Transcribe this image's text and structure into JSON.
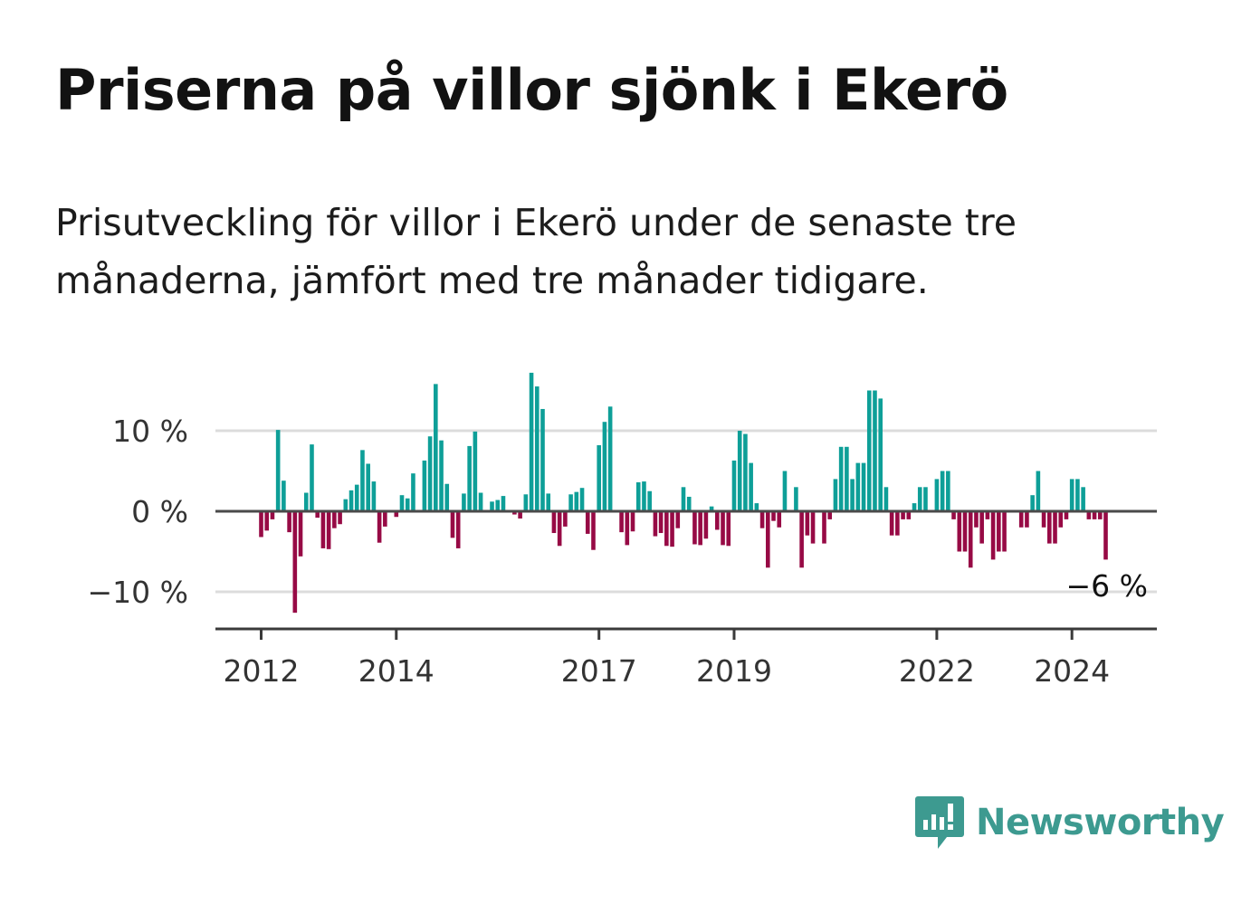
{
  "title": "Priserna på villor sjönk i Ekerö",
  "subtitle": "Prisutveckling för villor i Ekerö under de senaste tre månaderna, jämfört med tre månader tidigare.",
  "brand": {
    "name": "Newsworthy",
    "color": "#3d9a90",
    "icon": "newsworthy-logo-icon"
  },
  "colors": {
    "positive": "#0e9f98",
    "negative": "#970a45",
    "grid": "#dcdcdc",
    "axis": "#3a3a3a"
  },
  "chart_data": {
    "type": "bar",
    "title": "Priserna på villor sjönk i Ekerö",
    "ylabel": "",
    "xlabel": "",
    "ylim": [
      -15,
      18
    ],
    "yticks": [
      {
        "value": 10,
        "label": "10 %"
      },
      {
        "value": 0,
        "label": "0 %"
      },
      {
        "value": -10,
        "label": "−10 %"
      }
    ],
    "xticks": [
      {
        "index": 0,
        "label": "2012"
      },
      {
        "index": 24,
        "label": "2014"
      },
      {
        "index": 60,
        "label": "2017"
      },
      {
        "index": 84,
        "label": "2019"
      },
      {
        "index": 120,
        "label": "2022"
      },
      {
        "index": 144,
        "label": "2024"
      }
    ],
    "start": "2012-01",
    "frequency": "monthly",
    "values": [
      -3.2,
      -2.4,
      -1.0,
      10.1,
      3.8,
      -2.6,
      -12.6,
      -5.6,
      2.3,
      8.3,
      -0.8,
      -4.6,
      -4.7,
      -2.1,
      -1.6,
      1.5,
      2.6,
      3.3,
      7.6,
      5.9,
      3.7,
      -3.9,
      -1.9,
      0.0,
      -0.7,
      2.0,
      1.6,
      4.7,
      0.0,
      6.3,
      9.3,
      15.8,
      8.8,
      3.4,
      -3.3,
      -4.6,
      2.2,
      8.1,
      9.9,
      2.3,
      0.0,
      1.2,
      1.4,
      1.9,
      0.0,
      -0.4,
      -0.9,
      2.1,
      17.2,
      15.5,
      12.7,
      2.2,
      -2.7,
      -4.3,
      -1.9,
      2.1,
      2.4,
      2.9,
      -2.8,
      -4.8,
      8.2,
      11.1,
      13.0,
      0.0,
      -2.6,
      -4.2,
      -2.5,
      3.6,
      3.7,
      2.5,
      -3.1,
      -2.7,
      -4.3,
      -4.4,
      -2.1,
      3.0,
      1.8,
      -4.1,
      -4.2,
      -3.4,
      0.6,
      -2.3,
      -4.2,
      -4.3,
      6.3,
      10.0,
      9.6,
      6.0,
      1.0,
      -2.1,
      -7.0,
      -1.2,
      -2.0,
      5.0,
      0.0,
      3.0,
      -7.0,
      -3.0,
      -4.0,
      0.0,
      -4.0,
      -1.0,
      4.0,
      8.0,
      8.0,
      4.0,
      6.0,
      6.0,
      15.0,
      15.0,
      14.0,
      3.0,
      -3.0,
      -3.0,
      -1.0,
      -1.0,
      1.0,
      3.0,
      3.0,
      0.0,
      4.0,
      5.0,
      5.0,
      -1.0,
      -5.0,
      -5.0,
      -7.0,
      -2.0,
      -4.0,
      -1.0,
      -6.0,
      -5.0,
      -5.0,
      0.0,
      0.0,
      -2.0,
      -2.0,
      2.0,
      5.0,
      -2.0,
      -4.0,
      -4.0,
      -2.0,
      -1.0,
      4.0,
      4.0,
      3.0,
      -1.0,
      -1.0,
      -1.0,
      -6.0
    ],
    "last_value_label": "−6 %"
  }
}
